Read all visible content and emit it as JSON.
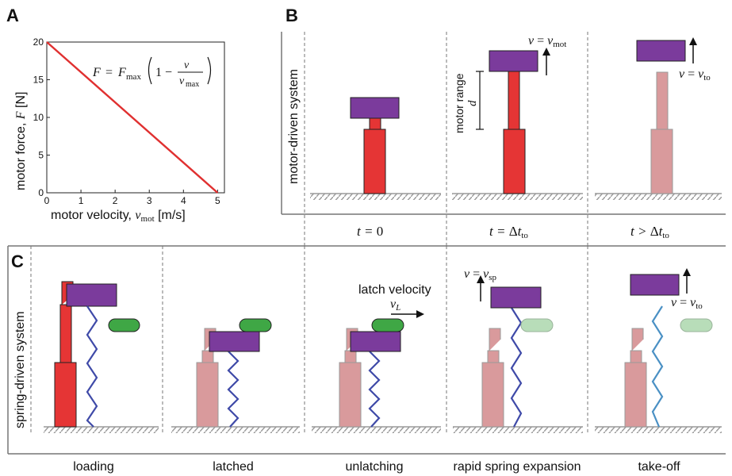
{
  "panels": {
    "a": "A",
    "b": "B",
    "c": "C"
  },
  "panel_a": {
    "ylabel_prefix": "motor force, ",
    "ylabel_symbol": "F",
    "ylabel_unit": " [N]",
    "xlabel_prefix": "motor velocity, ",
    "xlabel_symbol": "v",
    "xlabel_subscript": "mot",
    "xlabel_unit": " [m/s]",
    "equation": {
      "lhs": "F",
      "eq": "=",
      "fmax": "F",
      "fmax_sub": "max",
      "one_minus": "1 −",
      "num": "v",
      "den": "v",
      "den_sub": "max"
    }
  },
  "chart_data": {
    "type": "line",
    "x": [
      0,
      5
    ],
    "series": [
      {
        "values": [
          20,
          0
        ]
      }
    ],
    "xlim": [
      0,
      5.2
    ],
    "ylim": [
      0,
      20
    ],
    "xticks": [
      0,
      1,
      2,
      3,
      4,
      5
    ],
    "yticks": [
      0,
      5,
      10,
      15,
      20
    ],
    "line_color": "#e03030"
  },
  "panel_b": {
    "side_label": "motor-driven system",
    "times": [
      {
        "prefix": "t = ",
        "sym": "",
        "main": "0",
        "sub": ""
      },
      {
        "prefix": "t = ",
        "sym": "Δ",
        "main": "t",
        "sub": "to"
      },
      {
        "prefix": "t > ",
        "sym": "Δ",
        "main": "t",
        "sub": "to"
      }
    ],
    "velocity_mot": {
      "lhs": "v",
      "eq": " = ",
      "rhs": "v",
      "sub": "mot"
    },
    "velocity_to": {
      "lhs": "v",
      "eq": " = ",
      "rhs": "v",
      "sub": "to"
    },
    "range_label": "motor range",
    "range_symbol": "d"
  },
  "panel_c": {
    "side_label": "spring-driven system",
    "stages": [
      "loading",
      "latched",
      "unlatching",
      "rapid spring expansion",
      "take-off"
    ],
    "latch_velocity_label": "latch velocity",
    "latch_velocity_symbol": "v",
    "latch_velocity_sub": "L",
    "velocity_sp": {
      "lhs": "v",
      "eq": " = ",
      "rhs": "v",
      "sub": "sp"
    },
    "velocity_to": {
      "lhs": "v",
      "eq": " = ",
      "rhs": "v",
      "sub": "to"
    }
  },
  "colors": {
    "mass": "#7b3b9c",
    "motor_active": "#e53535",
    "motor_faded": "#d99a9c",
    "spring_loaded": "#3f4aa8",
    "spring_released": "#4a90c4",
    "latch_active": "#3fa745",
    "latch_faded": "#b8ddb9"
  }
}
